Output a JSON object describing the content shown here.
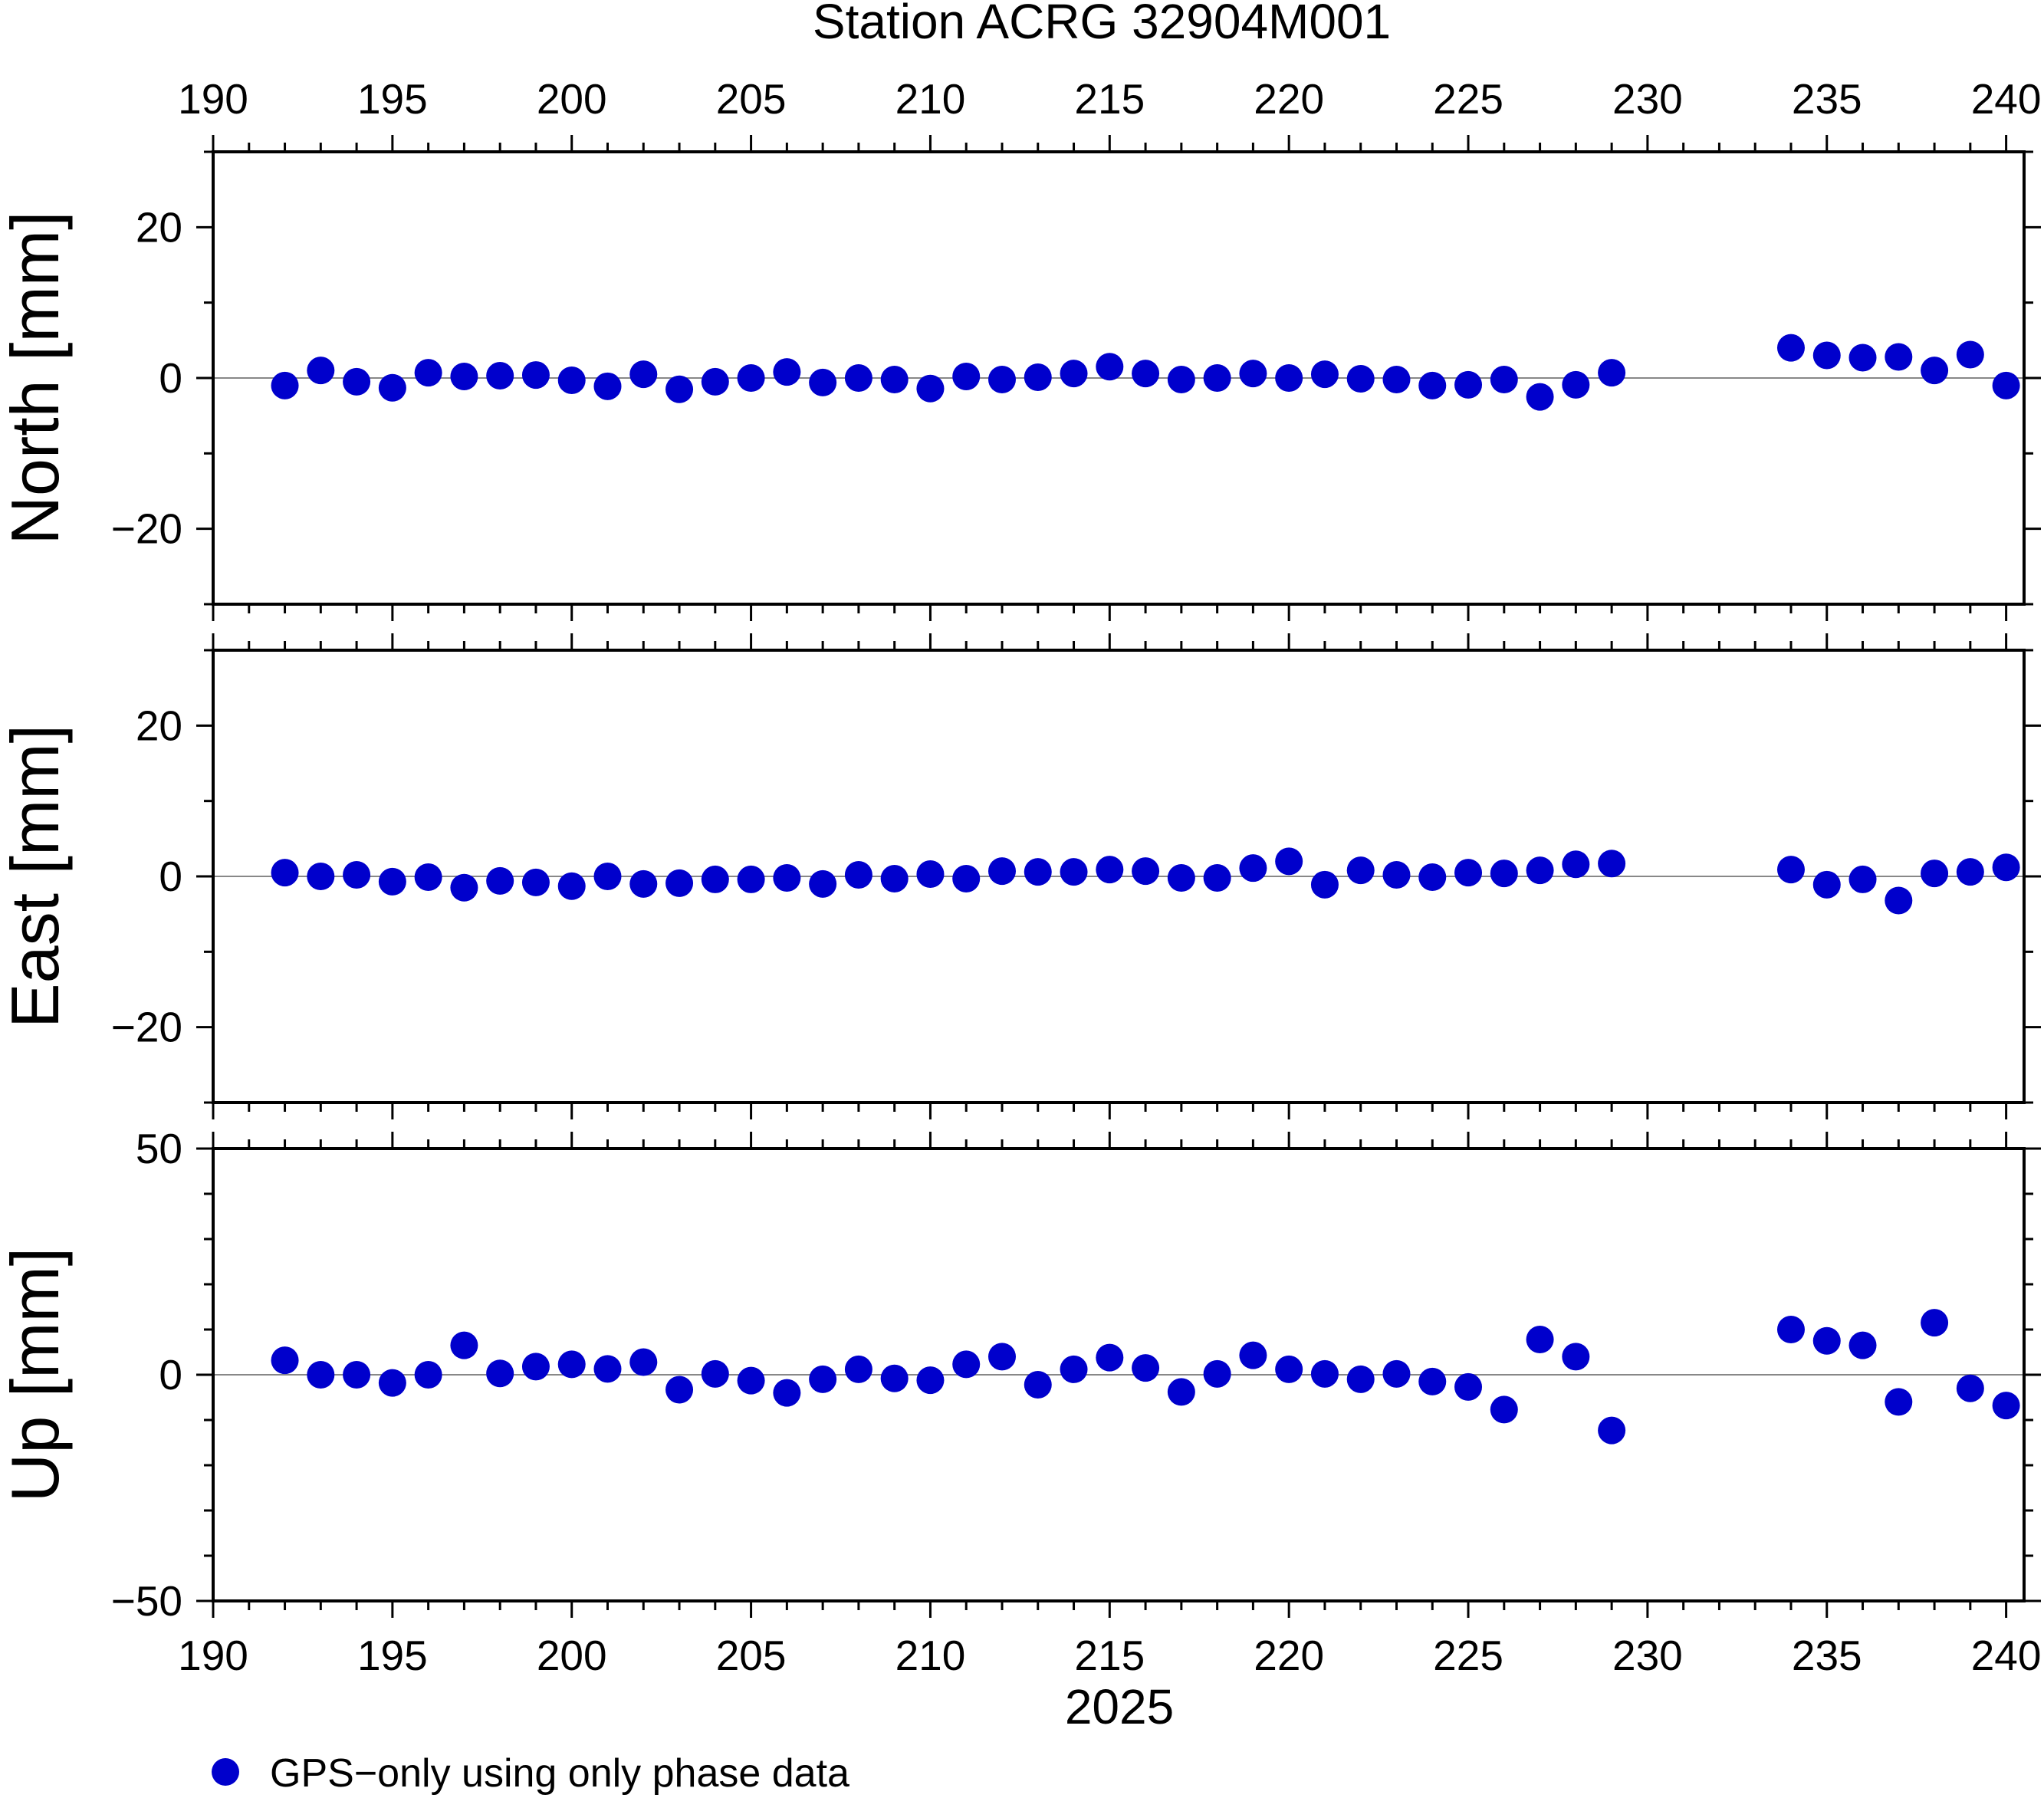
{
  "chart_data": {
    "type": "scatter",
    "title": "Station ACRG 32904M001",
    "xlabel": "2025",
    "xlim": [
      190,
      240.5
    ],
    "x_ticks": [
      190,
      195,
      200,
      205,
      210,
      215,
      220,
      225,
      230,
      235,
      240
    ],
    "x_tick_labels": [
      "190",
      "195",
      "200",
      "205",
      "210",
      "215",
      "220",
      "225",
      "230",
      "235",
      "240"
    ],
    "marker_color": "#0000cc",
    "legend": {
      "label": "GPS−only using only phase data",
      "placement": "bottom-left"
    },
    "panels": [
      {
        "name": "north",
        "ylabel": "North [mm]",
        "ylim": [
          -30,
          30
        ],
        "y_ticks": [
          -20,
          0,
          20
        ],
        "y_tick_labels": [
          "−20",
          "0",
          "20"
        ],
        "x": [
          192,
          193,
          194,
          195,
          196,
          197,
          198,
          199,
          200,
          201,
          202,
          203,
          204,
          205,
          206,
          207,
          208,
          209,
          210,
          211,
          212,
          213,
          214,
          215,
          216,
          217,
          218,
          219,
          220,
          221,
          222,
          223,
          224,
          225,
          226,
          227,
          228,
          229,
          234,
          235,
          236,
          237,
          238,
          239,
          240
        ],
        "y": [
          -1,
          1,
          -0.5,
          -1.3,
          0.7,
          0.2,
          0.3,
          0.4,
          -0.3,
          -1.1,
          0.5,
          -1.5,
          -0.5,
          0,
          0.8,
          -0.6,
          0,
          -0.2,
          -1.4,
          0.2,
          -0.2,
          0.1,
          0.6,
          1.5,
          0.6,
          -0.2,
          0,
          0.6,
          0,
          0.5,
          -0.1,
          -0.2,
          -1,
          -0.9,
          -0.2,
          -2.5,
          -0.9,
          0.7,
          4,
          3,
          2.7,
          2.8,
          1,
          3.1,
          -1
        ]
      },
      {
        "name": "east",
        "ylabel": "East [mm]",
        "ylim": [
          -30,
          30
        ],
        "y_ticks": [
          -20,
          0,
          20
        ],
        "y_tick_labels": [
          "−20",
          "0",
          "20"
        ],
        "x": [
          192,
          193,
          194,
          195,
          196,
          197,
          198,
          199,
          200,
          201,
          202,
          203,
          204,
          205,
          206,
          207,
          208,
          209,
          210,
          211,
          212,
          213,
          214,
          215,
          216,
          217,
          218,
          219,
          220,
          221,
          222,
          223,
          224,
          225,
          226,
          227,
          228,
          229,
          234,
          235,
          236,
          237,
          238,
          239,
          240
        ],
        "y": [
          0.5,
          0,
          0.2,
          -0.7,
          -0.1,
          -1.5,
          -0.6,
          -0.8,
          -1.3,
          0,
          -1,
          -0.9,
          -0.4,
          -0.4,
          -0.2,
          -1,
          0.2,
          -0.3,
          0.3,
          -0.3,
          0.7,
          0.6,
          0.6,
          0.9,
          0.7,
          -0.2,
          -0.2,
          1.1,
          2,
          -1.1,
          0.8,
          0.2,
          -0.1,
          0.5,
          0.4,
          0.8,
          1.6,
          1.7,
          0.9,
          -1.1,
          -0.4,
          -3.2,
          0.4,
          0.6,
          1.2
        ]
      },
      {
        "name": "up",
        "ylabel": "Up [mm]",
        "ylim": [
          -50,
          50
        ],
        "y_ticks": [
          -50,
          0,
          50
        ],
        "y_tick_labels": [
          "−50",
          "0",
          "50"
        ],
        "x": [
          192,
          193,
          194,
          195,
          196,
          197,
          198,
          199,
          200,
          201,
          202,
          203,
          204,
          205,
          206,
          207,
          208,
          209,
          210,
          211,
          212,
          213,
          214,
          215,
          216,
          217,
          218,
          219,
          220,
          221,
          222,
          223,
          224,
          225,
          226,
          227,
          228,
          229,
          234,
          235,
          236,
          237,
          238,
          239,
          240
        ],
        "y": [
          3.2,
          0,
          0,
          -1.8,
          0,
          6.5,
          0.3,
          1.8,
          2.3,
          1.3,
          2.8,
          -3.3,
          0.2,
          -1.3,
          -4,
          -1,
          1.2,
          -0.8,
          -1.2,
          2.3,
          4,
          -2.2,
          1.2,
          3.8,
          1.5,
          -3.8,
          0.2,
          4.3,
          1.2,
          0.2,
          -1,
          0.2,
          -1.5,
          -2.7,
          -7.7,
          7.8,
          4,
          -12.3,
          10,
          7.5,
          6.5,
          -6,
          11.5,
          -3,
          -6.8
        ]
      }
    ]
  }
}
